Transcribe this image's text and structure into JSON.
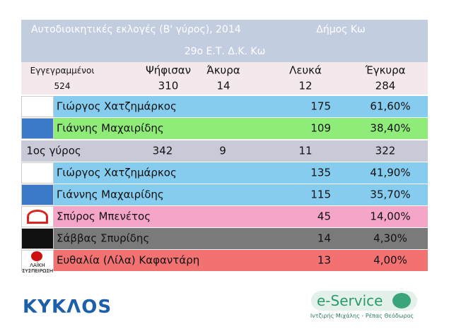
{
  "header": {
    "title": "Αυτοδιοικητικές εκλογές (Β' γύρος), 2014",
    "municipality": "Δήμος Κω",
    "subtitle": "29ο Ε.Τ. Δ.Κ. Κω"
  },
  "summary": {
    "labels": [
      "Εγγεγραμμένοι",
      "Ψήφισαν",
      "Άκυρα",
      "Λευκά",
      "Έγκυρα"
    ],
    "values": [
      524,
      310,
      14,
      12,
      284
    ]
  },
  "round2_results": [
    {
      "name": "Γιώργος Χατζημάρκος",
      "votes": 175,
      "percent": "61,60%"
    },
    {
      "name": "Γιάννης Μαχαιρίδης",
      "votes": 109,
      "percent": "38,40%"
    }
  ],
  "round1": {
    "label": "1ος γύρος",
    "values": [
      342,
      9,
      11,
      322
    ]
  },
  "round1_results": [
    {
      "name": "Γιώργος Χατζημάρκος",
      "votes": 135,
      "percent": "41,90%"
    },
    {
      "name": "Γιάννης Μαχαιρίδης",
      "votes": 115,
      "percent": "35,70%"
    },
    {
      "name": "Σπύρος Μπενέτος",
      "votes": 45,
      "percent": "14,00%"
    },
    {
      "name": "Σάββας Σπυρίδης",
      "votes": 14,
      "percent": "4,30%"
    },
    {
      "name": "Ευθαλία (Λίλα) Καφαντάρη",
      "votes": 13,
      "percent": "4,00%",
      "logo_text": "ΛΑΪΚΗ ΣΥΣΠΕΙΡΩΣΗ"
    }
  ],
  "footer": {
    "left_logo": "ΚΥΚΛΟS",
    "right_logo": "e-Service",
    "right_caption": "Ιντζιρής Μιχάλης - Ρέπας Θεόδωρος"
  }
}
